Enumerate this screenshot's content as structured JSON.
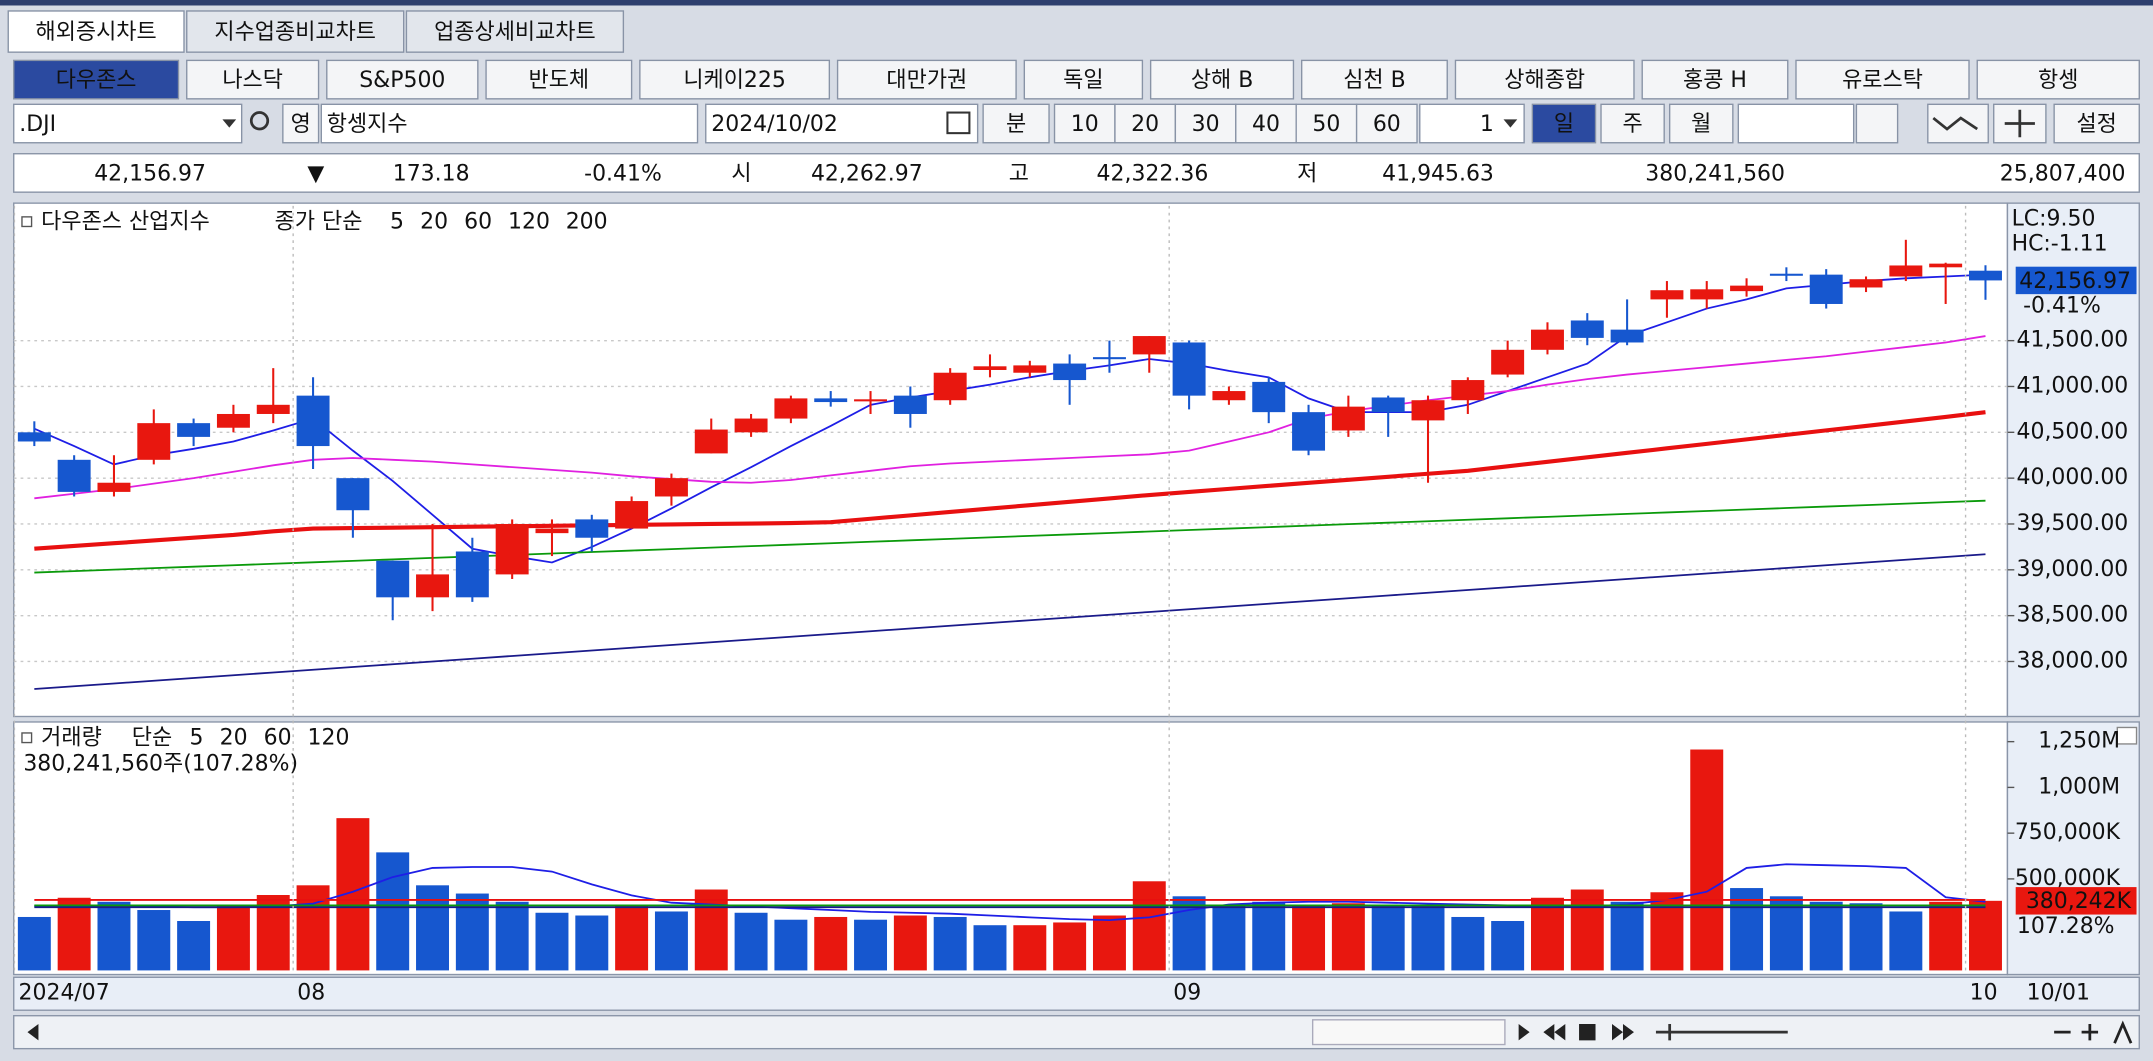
{
  "tabs": [
    "해외증시차트",
    "지수업종비교차트",
    "업종상세비교차트"
  ],
  "markets": [
    "다우존스",
    "나스닥",
    "S&P500",
    "반도체",
    "니케이225",
    "대만가권",
    "독일",
    "상해 B",
    "심천 B",
    "상해종합",
    "홍콩 H",
    "유로스탁",
    "항셍"
  ],
  "toolbar": {
    "symbol": ".DJI",
    "lang": "영",
    "name": "항셍지수",
    "date": "2024/10/02",
    "minute": "분",
    "intervals": [
      "10",
      "20",
      "30",
      "40",
      "50",
      "60"
    ],
    "count": "1",
    "periods": [
      "일",
      "주",
      "월"
    ],
    "settings": "설정"
  },
  "quote": {
    "last": "42,156.97",
    "arrow": "▼",
    "change": "173.18",
    "change_pct": "-0.41%",
    "open_label": "시",
    "open": "42,262.97",
    "high_label": "고",
    "high": "42,322.36",
    "low_label": "저",
    "low": "41,945.63",
    "volume": "380,241,560",
    "amount": "25,807,400"
  },
  "chart_data": [
    {
      "type": "candlestick",
      "title": "다우존스 산업지수",
      "ma_label": "종가 단순",
      "open": [
        40500,
        40200,
        39850,
        40200,
        40600,
        40550,
        40700,
        40900,
        40000,
        39100,
        38700,
        39200,
        38950,
        39400,
        39550,
        39450,
        39800,
        40270,
        40500,
        40650,
        40870,
        40840,
        40900,
        40850,
        41180,
        41150,
        41250,
        41320,
        41350,
        41480,
        40850,
        41050,
        40720,
        40520,
        40880,
        40630,
        40850,
        41130,
        41400,
        41720,
        41620,
        41950,
        41950,
        42040,
        42230,
        42220,
        42080,
        42200,
        42300,
        42262.97
      ],
      "high": [
        40620,
        40250,
        40250,
        40750,
        40650,
        40800,
        41200,
        41100,
        40000,
        39100,
        39500,
        39350,
        39550,
        39550,
        39600,
        39800,
        40050,
        40650,
        40700,
        40900,
        40950,
        40950,
        41000,
        41200,
        41350,
        41280,
        41350,
        41500,
        41550,
        41500,
        41000,
        41100,
        40800,
        40900,
        40900,
        40900,
        41100,
        41500,
        41700,
        41800,
        41950,
        42150,
        42150,
        42180,
        42300,
        42280,
        42200,
        42600,
        42350,
        42322.36
      ],
      "low": [
        40350,
        39800,
        39800,
        40150,
        40350,
        40500,
        40600,
        40100,
        39350,
        38450,
        38550,
        38650,
        38900,
        39150,
        39200,
        39450,
        39700,
        40270,
        40450,
        40600,
        40780,
        40700,
        40550,
        40800,
        41100,
        41100,
        40800,
        41150,
        41150,
        40750,
        40800,
        40600,
        40250,
        40450,
        40450,
        39950,
        40700,
        41100,
        41350,
        41450,
        41450,
        41750,
        41850,
        41980,
        42150,
        41850,
        42030,
        42150,
        41900,
        41945.63
      ],
      "close": [
        40400,
        39850,
        39950,
        40600,
        40450,
        40700,
        40800,
        40350,
        39650,
        38700,
        38950,
        38700,
        39500,
        39450,
        39350,
        39750,
        40000,
        40530,
        40650,
        40870,
        40830,
        40860,
        40700,
        41150,
        41220,
        41230,
        41070,
        41300,
        41550,
        40900,
        40950,
        40720,
        40300,
        40780,
        40720,
        40850,
        41070,
        41400,
        41620,
        41530,
        41480,
        42050,
        42060,
        42100,
        42210,
        41900,
        42170,
        42320,
        42340,
        42156.97
      ],
      "up_color": "#e8170f",
      "down_color": "#1657cf",
      "series": [
        {
          "name": "5",
          "color": "#1e1ee6",
          "width": 1.3,
          "values": [
            40540,
            40350,
            40150,
            40250,
            40320,
            40400,
            40520,
            40650,
            40300,
            39970,
            39600,
            39230,
            39150,
            39080,
            39250,
            39450,
            39670,
            39900,
            40120,
            40350,
            40570,
            40800,
            40880,
            40950,
            41020,
            41100,
            41170,
            41230,
            41300,
            41250,
            41170,
            41100,
            40870,
            40720,
            40720,
            40720,
            40800,
            40950,
            41100,
            41250,
            41550,
            41700,
            41850,
            41950,
            42070,
            42110,
            42150,
            42180,
            42200,
            42220
          ]
        },
        {
          "name": "20",
          "color": "#e020e0",
          "width": 1.3,
          "values": [
            39780,
            39830,
            39880,
            39940,
            40000,
            40070,
            40140,
            40200,
            40220,
            40200,
            40180,
            40150,
            40120,
            40090,
            40060,
            40020,
            39990,
            39960,
            39950,
            39980,
            40030,
            40080,
            40130,
            40160,
            40180,
            40200,
            40220,
            40240,
            40260,
            40300,
            40400,
            40500,
            40650,
            40730,
            40790,
            40850,
            40900,
            40950,
            41020,
            41080,
            41130,
            41170,
            41210,
            41250,
            41290,
            41330,
            41380,
            41430,
            41480,
            41550
          ]
        },
        {
          "name": "60",
          "color": "#e81010",
          "width": 3,
          "values": [
            39230,
            39260,
            39290,
            39320,
            39350,
            39380,
            39420,
            39450,
            39455,
            39460,
            39465,
            39470,
            39475,
            39480,
            39485,
            39490,
            39495,
            39500,
            39505,
            39510,
            39520,
            39557,
            39594,
            39631,
            39668,
            39705,
            39742,
            39779,
            39816,
            39850,
            39883,
            39916,
            39949,
            39982,
            40015,
            40048,
            40080,
            40129,
            40178,
            40227,
            40276,
            40325,
            40374,
            40423,
            40472,
            40521,
            40570,
            40619,
            40668,
            40720
          ]
        },
        {
          "name": "120",
          "color": "#0a9a0a",
          "width": 1.3,
          "values": [
            38970,
            38986,
            39002,
            39018,
            39034,
            39050,
            39066,
            39082,
            39098,
            39114,
            39130,
            39146,
            39162,
            39178,
            39194,
            39210,
            39226,
            39242,
            39258,
            39274,
            39290,
            39306,
            39322,
            39338,
            39354,
            39370,
            39386,
            39402,
            39418,
            39434,
            39450,
            39466,
            39482,
            39498,
            39514,
            39530,
            39546,
            39562,
            39578,
            39594,
            39610,
            39626,
            39642,
            39658,
            39674,
            39690,
            39706,
            39722,
            39738,
            39754
          ]
        },
        {
          "name": "200",
          "color": "#1a1a8a",
          "width": 1.3,
          "values": [
            37700,
            37730,
            37760,
            37790,
            37820,
            37850,
            37880,
            37910,
            37940,
            37970,
            38000,
            38030,
            38060,
            38090,
            38120,
            38150,
            38180,
            38210,
            38240,
            38270,
            38300,
            38330,
            38360,
            38390,
            38420,
            38450,
            38480,
            38510,
            38540,
            38570,
            38600,
            38630,
            38660,
            38690,
            38720,
            38750,
            38780,
            38810,
            38840,
            38870,
            38900,
            38930,
            38960,
            38990,
            39020,
            39050,
            39080,
            39110,
            39140,
            39170
          ]
        }
      ],
      "ylim": [
        37430,
        42970
      ],
      "yticks": [
        {
          "value": 38000,
          "label": "38,000.00"
        },
        {
          "value": 38500,
          "label": "38,500.00"
        },
        {
          "value": 39000,
          "label": "39,000.00"
        },
        {
          "value": 39500,
          "label": "39,500.00"
        },
        {
          "value": 40000,
          "label": "40,000.00"
        },
        {
          "value": 40500,
          "label": "40,500.00"
        },
        {
          "value": 41000,
          "label": "41,000.00"
        },
        {
          "value": 41500,
          "label": "41,500.00"
        }
      ],
      "grid": true,
      "last_label": "42,156.97",
      "last_change": "-0.41%",
      "annotations": [
        "LC:9.50",
        "HC:-1.11"
      ]
    },
    {
      "type": "bar",
      "title": "거래량",
      "ma_label": "단순",
      "summary": "380,241,560주(107.28%)",
      "categories": [
        "2024/07",
        null,
        null,
        null,
        null,
        null,
        null,
        "08",
        null,
        null,
        null,
        null,
        null,
        null,
        null,
        null,
        null,
        null,
        null,
        null,
        null,
        null,
        null,
        null,
        null,
        null,
        null,
        null,
        null,
        "09",
        null,
        null,
        null,
        null,
        null,
        null,
        null,
        null,
        null,
        null,
        null,
        null,
        null,
        null,
        null,
        null,
        null,
        null,
        null,
        "10"
      ],
      "values": [
        292,
        397,
        375,
        330,
        270,
        352,
        412,
        465,
        832,
        645,
        465,
        420,
        375,
        315,
        300,
        352,
        322,
        442,
        315,
        277,
        292,
        277,
        300,
        292,
        247,
        247,
        262,
        300,
        487,
        405,
        352,
        375,
        352,
        367,
        352,
        352,
        292,
        270,
        397,
        442,
        375,
        427,
        1207,
        450,
        405,
        375,
        367,
        322,
        375,
        380.24156
      ],
      "colors": [
        "#1657cf",
        "#e8170f",
        "#1657cf",
        "#1657cf",
        "#1657cf",
        "#e8170f",
        "#e8170f",
        "#e8170f",
        "#e8170f",
        "#1657cf",
        "#1657cf",
        "#1657cf",
        "#1657cf",
        "#1657cf",
        "#1657cf",
        "#e8170f",
        "#1657cf",
        "#e8170f",
        "#1657cf",
        "#1657cf",
        "#e8170f",
        "#1657cf",
        "#e8170f",
        "#1657cf",
        "#1657cf",
        "#e8170f",
        "#e8170f",
        "#e8170f",
        "#e8170f",
        "#1657cf",
        "#1657cf",
        "#1657cf",
        "#e8170f",
        "#e8170f",
        "#1657cf",
        "#1657cf",
        "#1657cf",
        "#1657cf",
        "#e8170f",
        "#e8170f",
        "#1657cf",
        "#e8170f",
        "#e8170f",
        "#1657cf",
        "#1657cf",
        "#1657cf",
        "#1657cf",
        "#1657cf",
        "#e8170f",
        "#e8170f"
      ],
      "series": [
        {
          "name": "5",
          "color": "#1e1ee6",
          "values": [
            352,
            350,
            348,
            350,
            345,
            345,
            350,
            365,
            430,
            510,
            560,
            565,
            565,
            540,
            470,
            410,
            370,
            360,
            350,
            340,
            330,
            320,
            315,
            310,
            300,
            290,
            280,
            275,
            290,
            330,
            360,
            370,
            375,
            375,
            370,
            365,
            360,
            355,
            345,
            350,
            360,
            385,
            430,
            560,
            580,
            575,
            570,
            560,
            400,
            375
          ]
        },
        {
          "name": "20",
          "color": "#e81010",
          "values": [
            385,
            385,
            385,
            385,
            385,
            385,
            385,
            385,
            385,
            385,
            385,
            385,
            385,
            385,
            385,
            385,
            385,
            385,
            385,
            385,
            385,
            385,
            385,
            385,
            385,
            385,
            385,
            385,
            385,
            385,
            385,
            385,
            385,
            385,
            385,
            385,
            385,
            385,
            385,
            385,
            385,
            385,
            385,
            385,
            385,
            385,
            385,
            385,
            385,
            385
          ]
        },
        {
          "name": "60",
          "color": "#0a9a0a",
          "values": [
            355,
            355,
            355,
            355,
            355,
            355,
            355,
            355,
            355,
            355,
            355,
            355,
            355,
            355,
            355,
            355,
            355,
            355,
            355,
            355,
            355,
            355,
            355,
            355,
            355,
            355,
            355,
            355,
            355,
            355,
            355,
            355,
            355,
            355,
            355,
            355,
            355,
            355,
            355,
            355,
            355,
            355,
            355,
            355,
            355,
            355,
            355,
            355,
            355,
            355
          ]
        },
        {
          "name": "120",
          "color": "#1a1a8a",
          "values": [
            345,
            345,
            345,
            345,
            345,
            345,
            345,
            345,
            345,
            345,
            345,
            345,
            345,
            345,
            345,
            345,
            345,
            345,
            345,
            345,
            345,
            345,
            345,
            345,
            345,
            345,
            345,
            345,
            345,
            345,
            345,
            345,
            345,
            345,
            345,
            345,
            345,
            345,
            345,
            345,
            345,
            345,
            345,
            345,
            345,
            345,
            345,
            345,
            345,
            345
          ]
        }
      ],
      "ylim": [
        0,
        1350
      ],
      "yticks": [
        {
          "value": 500,
          "label": "500,000K"
        },
        {
          "value": 750,
          "label": "750,000K"
        },
        {
          "value": 1000,
          "label": "1,000M"
        },
        {
          "value": 1250,
          "label": "1,250M"
        }
      ],
      "last_label": "380,242K",
      "last_pct": "107.28%",
      "cursor_date": "10/01"
    }
  ]
}
